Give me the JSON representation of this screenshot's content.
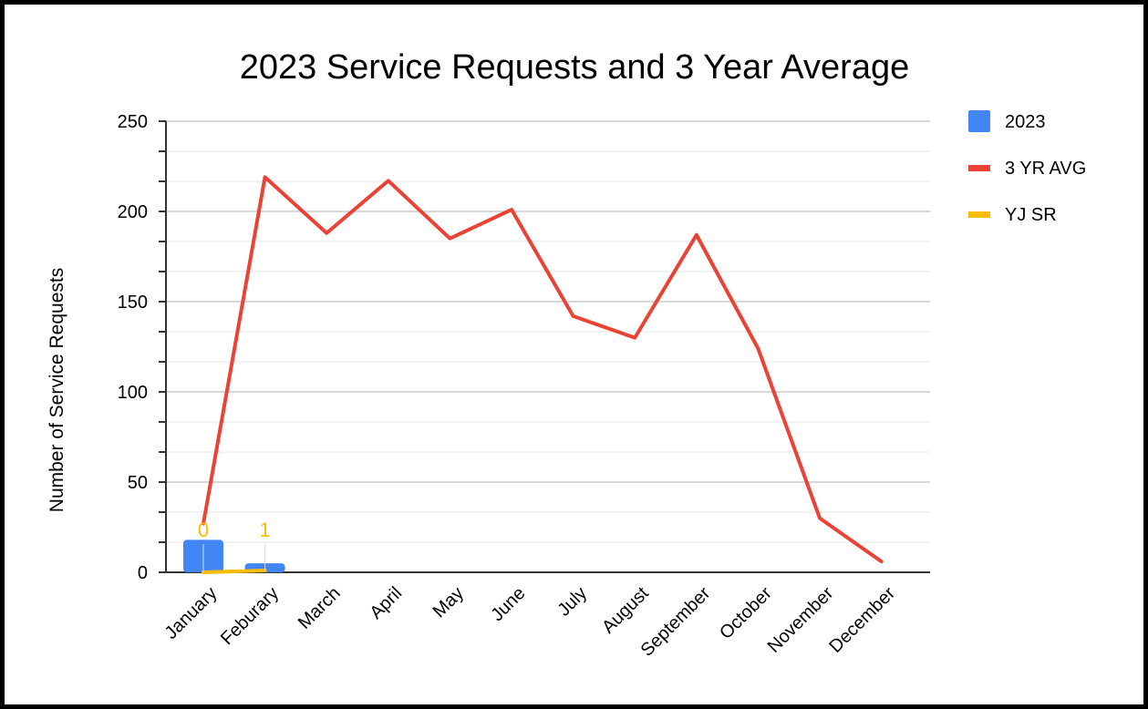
{
  "chart_data": {
    "type": "bar",
    "title": "2023 Service Requests and 3 Year Average",
    "xlabel": "",
    "ylabel": "Number of Service Requests",
    "ylim": [
      0,
      250
    ],
    "yticks": [
      "0",
      "50",
      "100",
      "150",
      "200",
      "250"
    ],
    "grid": true,
    "legend_position": "right",
    "categories": [
      "January",
      "Feburary",
      "March",
      "April",
      "May",
      "June",
      "July",
      "August",
      "September",
      "October",
      "November",
      "December"
    ],
    "series": [
      {
        "name": "2023",
        "type": "bar",
        "color": "#4285f4",
        "values": [
          18,
          5,
          null,
          null,
          null,
          null,
          null,
          null,
          null,
          null,
          null,
          null
        ]
      },
      {
        "name": "3 YR AVG",
        "type": "line",
        "color": "#ea4335",
        "values": [
          27,
          219,
          188,
          217,
          185,
          201,
          142,
          130,
          187,
          124,
          30,
          6
        ]
      },
      {
        "name": "YJ SR",
        "type": "line",
        "color": "#fbbc04",
        "values": [
          0,
          1,
          null,
          null,
          null,
          null,
          null,
          null,
          null,
          null,
          null,
          null
        ],
        "data_labels": [
          "0",
          "1"
        ]
      }
    ]
  }
}
